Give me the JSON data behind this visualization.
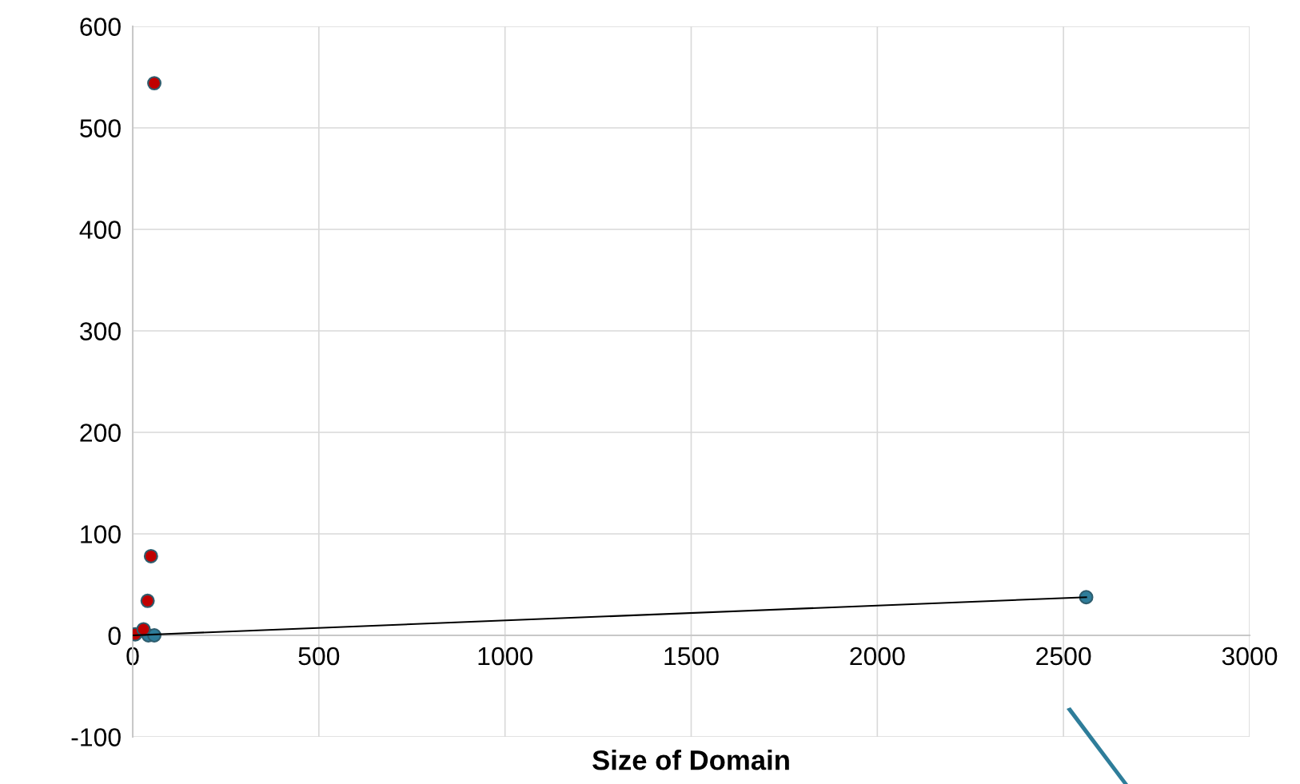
{
  "chart_data": {
    "type": "scatter",
    "xlabel": "Size of Domain",
    "series": [
      {
        "color": "#2e7d9a",
        "x": [
          42,
          58,
          2561
        ],
        "values": [
          0,
          0,
          37.6
        ]
      },
      {
        "color": "#c00000",
        "x": [
          7,
          29,
          40,
          49,
          58
        ],
        "values": [
          1,
          6,
          34,
          78,
          544
        ]
      },
      {
        "type": "line",
        "marker": "none",
        "color": "#000000",
        "x": [
          0,
          2561
        ],
        "values": [
          0,
          37.6
        ]
      }
    ],
    "xlim": [
      0,
      3000
    ],
    "xticks": [
      0,
      500,
      1000,
      1500,
      2000,
      2500,
      3000
    ],
    "ylim": [
      -100,
      600
    ],
    "yticks": [
      -100,
      0,
      100,
      200,
      300,
      400,
      500,
      600
    ],
    "grid": true,
    "marker": "circle"
  }
}
